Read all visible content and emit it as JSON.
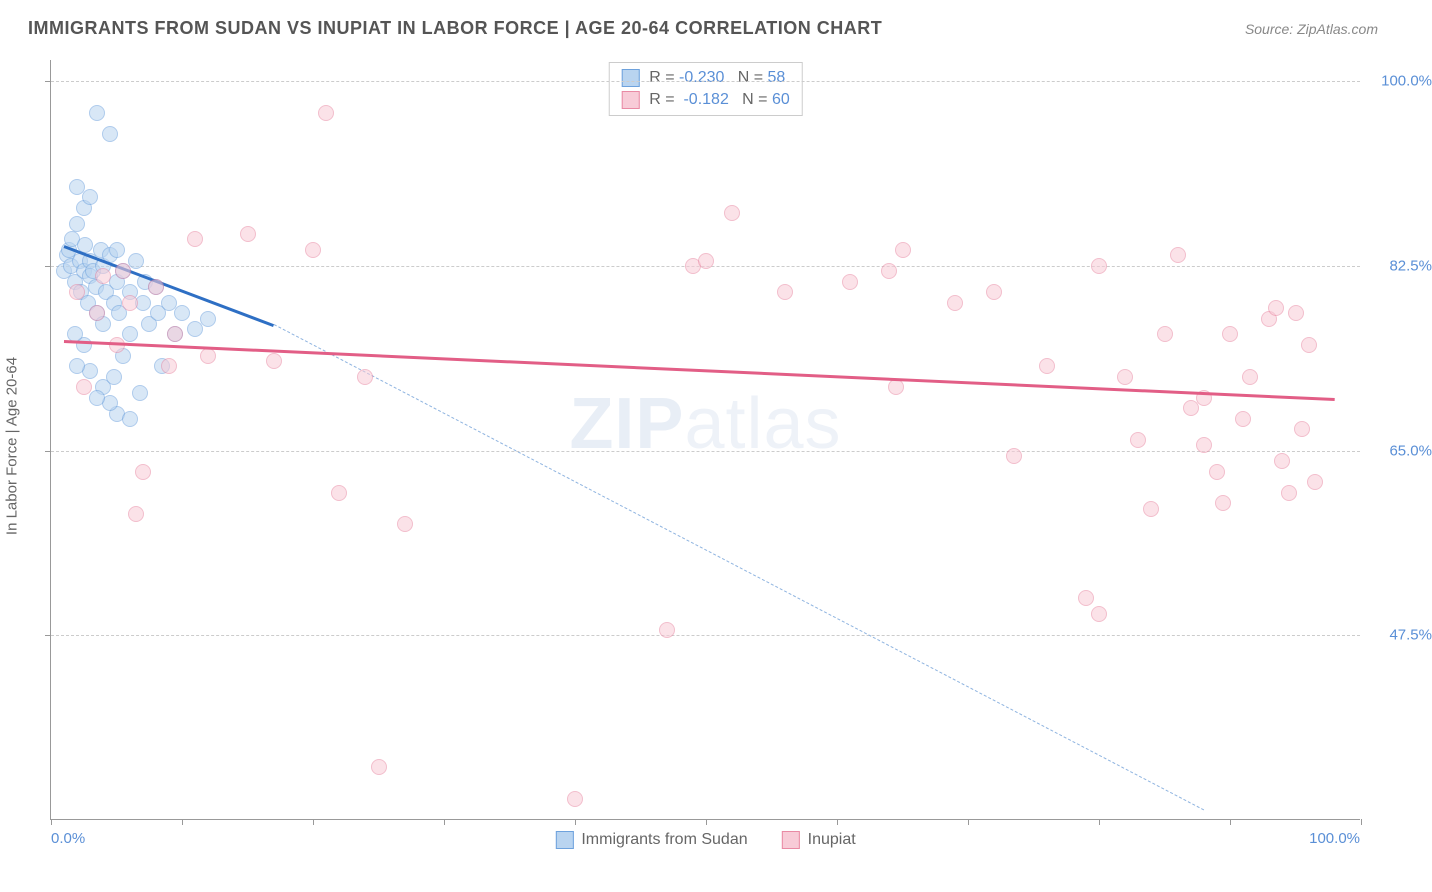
{
  "header": {
    "title": "IMMIGRANTS FROM SUDAN VS INUPIAT IN LABOR FORCE | AGE 20-64 CORRELATION CHART",
    "source": "Source: ZipAtlas.com"
  },
  "chart": {
    "type": "scatter",
    "ylabel": "In Labor Force | Age 20-64",
    "xlim": [
      0,
      100
    ],
    "ylim": [
      30,
      102
    ],
    "xtick_positions": [
      0,
      10,
      20,
      30,
      40,
      50,
      60,
      70,
      80,
      90,
      100
    ],
    "ytick_positions": [
      47.5,
      65.0,
      82.5,
      100.0
    ],
    "ytick_labels": [
      "47.5%",
      "65.0%",
      "82.5%",
      "100.0%"
    ],
    "x_axis_labels": {
      "left": "0.0%",
      "right": "100.0%"
    },
    "background_color": "#ffffff",
    "grid_color": "#cccccc",
    "axis_color": "#999999",
    "label_color": "#666666",
    "tick_label_color": "#5a8fd6",
    "marker_radius": 8,
    "marker_stroke_width": 1.5,
    "watermark": {
      "bold": "ZIP",
      "light": "atlas",
      "color_bold": "#e0e8f4",
      "color_light": "#eef2f8"
    },
    "series": [
      {
        "name": "Immigrants from Sudan",
        "fill_color": "#b9d4f0",
        "stroke_color": "#6ea2dd",
        "fill_opacity": 0.55,
        "points": [
          [
            1.0,
            82.0
          ],
          [
            1.2,
            83.5
          ],
          [
            1.4,
            84.0
          ],
          [
            1.5,
            82.5
          ],
          [
            1.6,
            85.0
          ],
          [
            1.8,
            81.0
          ],
          [
            2.0,
            86.5
          ],
          [
            2.0,
            90.0
          ],
          [
            2.2,
            83.0
          ],
          [
            2.3,
            80.0
          ],
          [
            2.5,
            88.0
          ],
          [
            2.5,
            82.0
          ],
          [
            2.6,
            84.5
          ],
          [
            2.8,
            79.0
          ],
          [
            3.0,
            81.5
          ],
          [
            3.0,
            83.0
          ],
          [
            3.0,
            89.0
          ],
          [
            3.2,
            82.0
          ],
          [
            3.4,
            80.5
          ],
          [
            3.5,
            78.0
          ],
          [
            3.5,
            97.0
          ],
          [
            3.8,
            84.0
          ],
          [
            4.0,
            82.5
          ],
          [
            4.0,
            77.0
          ],
          [
            4.2,
            80.0
          ],
          [
            4.5,
            83.5
          ],
          [
            4.5,
            95.0
          ],
          [
            4.8,
            79.0
          ],
          [
            5.0,
            81.0
          ],
          [
            5.0,
            84.0
          ],
          [
            5.2,
            78.0
          ],
          [
            5.5,
            82.0
          ],
          [
            5.5,
            74.0
          ],
          [
            6.0,
            80.0
          ],
          [
            6.0,
            76.0
          ],
          [
            6.5,
            83.0
          ],
          [
            6.8,
            70.5
          ],
          [
            7.0,
            79.0
          ],
          [
            7.2,
            81.0
          ],
          [
            7.5,
            77.0
          ],
          [
            8.0,
            80.5
          ],
          [
            8.2,
            78.0
          ],
          [
            8.5,
            73.0
          ],
          [
            9.0,
            79.0
          ],
          [
            9.5,
            76.0
          ],
          [
            10.0,
            78.0
          ],
          [
            11.0,
            76.5
          ],
          [
            12.0,
            77.5
          ],
          [
            4.0,
            71.0
          ],
          [
            3.0,
            72.5
          ],
          [
            2.5,
            75.0
          ],
          [
            1.8,
            76.0
          ],
          [
            2.0,
            73.0
          ],
          [
            5.0,
            68.5
          ],
          [
            4.5,
            69.5
          ],
          [
            6.0,
            68.0
          ],
          [
            3.5,
            70.0
          ],
          [
            4.8,
            72.0
          ]
        ],
        "trend": {
          "x1": 1.0,
          "y1": 84.5,
          "x2": 17.0,
          "y2": 77.0,
          "dash_x2": 88.0,
          "dash_y2": 31.0,
          "solid_width": 3,
          "color": "#2e6fc4",
          "dash_color": "#8fb4e0"
        }
      },
      {
        "name": "Inupiat",
        "fill_color": "#f8cbd7",
        "stroke_color": "#e98aa4",
        "fill_opacity": 0.55,
        "points": [
          [
            2.0,
            80.0
          ],
          [
            3.5,
            78.0
          ],
          [
            4.0,
            81.5
          ],
          [
            5.0,
            75.0
          ],
          [
            5.5,
            82.0
          ],
          [
            6.0,
            79.0
          ],
          [
            7.0,
            63.0
          ],
          [
            8.0,
            80.5
          ],
          [
            9.0,
            73.0
          ],
          [
            9.5,
            76.0
          ],
          [
            11.0,
            85.0
          ],
          [
            12.0,
            74.0
          ],
          [
            15.0,
            85.5
          ],
          [
            17.0,
            73.5
          ],
          [
            20.0,
            84.0
          ],
          [
            21.0,
            97.0
          ],
          [
            22.0,
            61.0
          ],
          [
            24.0,
            72.0
          ],
          [
            25.0,
            35.0
          ],
          [
            27.0,
            58.0
          ],
          [
            40.0,
            32.0
          ],
          [
            47.0,
            48.0
          ],
          [
            49.0,
            82.5
          ],
          [
            50.0,
            83.0
          ],
          [
            52.0,
            87.5
          ],
          [
            56.0,
            80.0
          ],
          [
            61.0,
            81.0
          ],
          [
            64.0,
            82.0
          ],
          [
            64.5,
            71.0
          ],
          [
            65.0,
            84.0
          ],
          [
            69.0,
            79.0
          ],
          [
            72.0,
            80.0
          ],
          [
            73.5,
            64.5
          ],
          [
            76.0,
            73.0
          ],
          [
            79.0,
            51.0
          ],
          [
            80.0,
            49.5
          ],
          [
            80.0,
            82.5
          ],
          [
            82.0,
            72.0
          ],
          [
            83.0,
            66.0
          ],
          [
            84.0,
            59.5
          ],
          [
            85.0,
            76.0
          ],
          [
            86.0,
            83.5
          ],
          [
            87.0,
            69.0
          ],
          [
            88.0,
            70.0
          ],
          [
            88.0,
            65.5
          ],
          [
            89.0,
            63.0
          ],
          [
            89.5,
            60.0
          ],
          [
            90.0,
            76.0
          ],
          [
            91.0,
            68.0
          ],
          [
            91.5,
            72.0
          ],
          [
            93.0,
            77.5
          ],
          [
            93.5,
            78.5
          ],
          [
            94.0,
            64.0
          ],
          [
            94.5,
            61.0
          ],
          [
            95.0,
            78.0
          ],
          [
            95.5,
            67.0
          ],
          [
            96.0,
            75.0
          ],
          [
            96.5,
            62.0
          ],
          [
            6.5,
            59.0
          ],
          [
            2.5,
            71.0
          ]
        ],
        "trend": {
          "x1": 1.0,
          "y1": 75.5,
          "x2": 98.0,
          "y2": 70.0,
          "solid_width": 3,
          "color": "#e25e86"
        }
      }
    ],
    "legend_top": {
      "rows": [
        {
          "swatch_fill": "#b9d4f0",
          "swatch_stroke": "#6ea2dd",
          "r": "-0.230",
          "n": "58"
        },
        {
          "swatch_fill": "#f8cbd7",
          "swatch_stroke": "#e98aa4",
          "r": "-0.182",
          "n": "60"
        }
      ]
    },
    "legend_bottom": [
      {
        "swatch_fill": "#b9d4f0",
        "swatch_stroke": "#6ea2dd",
        "label": "Immigrants from Sudan"
      },
      {
        "swatch_fill": "#f8cbd7",
        "swatch_stroke": "#e98aa4",
        "label": "Inupiat"
      }
    ]
  }
}
